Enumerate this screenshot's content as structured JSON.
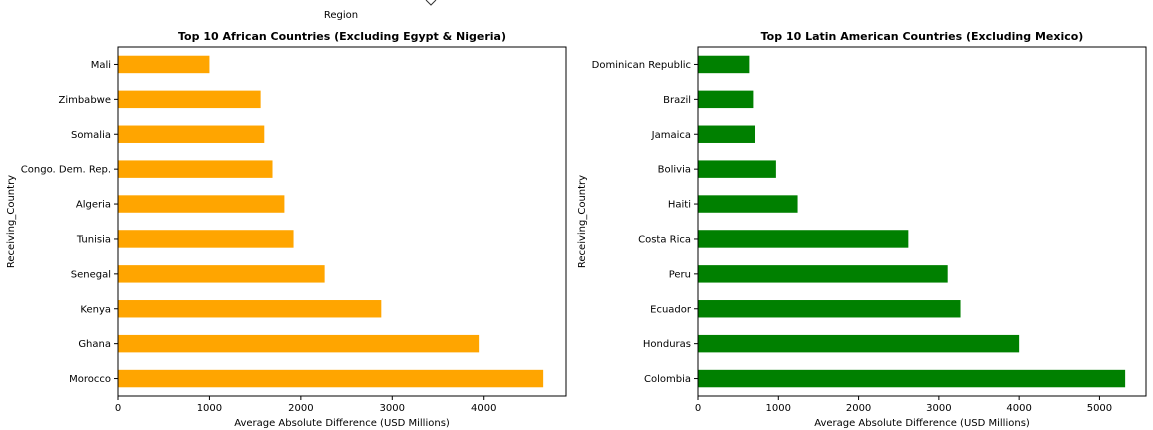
{
  "top_label": "Region",
  "chart_data": [
    {
      "type": "bar",
      "orientation": "horizontal",
      "title": "Top 10 African Countries (Excluding Egypt & Nigeria)",
      "xlabel": "Average Absolute Difference (USD Millions)",
      "ylabel": "Receiving_Country",
      "xlim": [
        0,
        4900
      ],
      "xticks": [
        0,
        1000,
        2000,
        3000,
        4000
      ],
      "bar_color": "#ffa500",
      "categories": [
        "Morocco",
        "Ghana",
        "Kenya",
        "Senegal",
        "Tunisia",
        "Algeria",
        "Congo. Dem. Rep.",
        "Somalia",
        "Zimbabwe",
        "Mali"
      ],
      "values": [
        4650,
        3950,
        2880,
        2260,
        1920,
        1820,
        1690,
        1600,
        1560,
        1000
      ],
      "grid": false
    },
    {
      "type": "bar",
      "orientation": "horizontal",
      "title": "Top 10 Latin American Countries (Excluding Mexico)",
      "xlabel": "Average Absolute Difference (USD Millions)",
      "ylabel": "Receiving_Country",
      "xlim": [
        0,
        5580
      ],
      "xticks": [
        0,
        1000,
        2000,
        3000,
        4000,
        5000
      ],
      "bar_color": "#008000",
      "categories": [
        "Colombia",
        "Honduras",
        "Ecuador",
        "Peru",
        "Costa Rica",
        "Haiti",
        "Bolivia",
        "Jamaica",
        "Brazil",
        "Dominican Republic"
      ],
      "values": [
        5320,
        4000,
        3270,
        3110,
        2620,
        1240,
        970,
        710,
        690,
        640
      ],
      "grid": false
    }
  ]
}
